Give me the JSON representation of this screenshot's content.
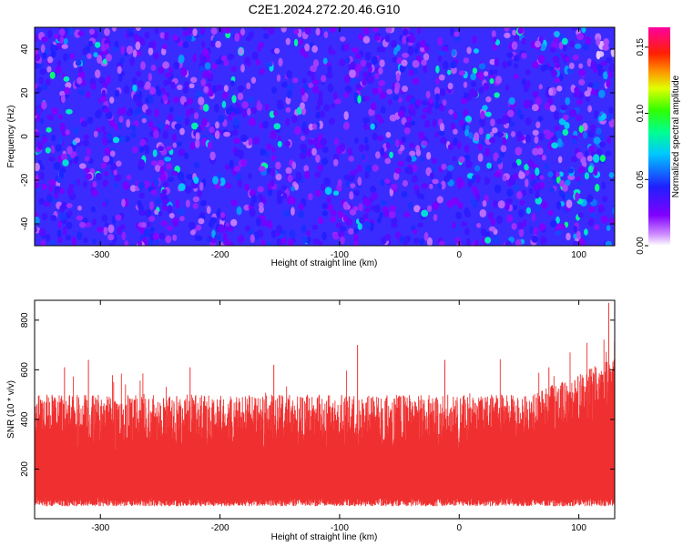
{
  "figure_title": "C2E1.2024.272.20.46.G10",
  "chart_data": [
    {
      "type": "heatmap",
      "title": "",
      "xlabel": "Height of straight line (km)",
      "ylabel": "Frequency (Hz)",
      "xlim": [
        -355,
        130
      ],
      "ylim": [
        -50,
        50
      ],
      "x_ticks": [
        -300,
        -200,
        -100,
        0,
        100
      ],
      "y_ticks": [
        -40,
        -20,
        0,
        20,
        40
      ],
      "colorbar": {
        "label": "Normalized spectral amplitude",
        "range": [
          0.0,
          0.165
        ],
        "ticks": [
          "0.00",
          "0.05",
          "0.10",
          "0.15"
        ],
        "tick_values": [
          0.0,
          0.05,
          0.1,
          0.15
        ],
        "colormap": "rainbow (white → violet → blue → cyan → green → yellow → orange → red → magenta)"
      },
      "description_values": {
        "dominant_level": 0.03,
        "typical_range": [
          0.01,
          0.07
        ],
        "hot_spots": [
          {
            "x": -340,
            "y": 28,
            "value": 0.09
          },
          {
            "x": 110,
            "y": -15,
            "value": 0.08
          },
          {
            "x": 120,
            "y": -10,
            "value": 0.09
          },
          {
            "x": -220,
            "y": -20,
            "value": 0.07
          },
          {
            "x": 90,
            "y": 5,
            "value": 0.07
          }
        ]
      },
      "grid": false
    },
    {
      "type": "line",
      "title": "",
      "xlabel": "Height of straight line (km)",
      "ylabel": "SNR (10 * v/v)",
      "xlim": [
        -355,
        130
      ],
      "ylim": [
        0,
        880
      ],
      "x_ticks": [
        -300,
        -200,
        -100,
        0,
        100
      ],
      "y_ticks": [
        200,
        400,
        600,
        800
      ],
      "series": [
        {
          "color": "#f03030",
          "baseline_range": [
            60,
            480
          ],
          "typical_center": 180,
          "peaks": [
            {
              "x": -355,
              "y": 480
            },
            {
              "x": -330,
              "y": 610
            },
            {
              "x": -310,
              "y": 640
            },
            {
              "x": -225,
              "y": 610
            },
            {
              "x": -155,
              "y": 620
            },
            {
              "x": -85,
              "y": 700
            },
            {
              "x": -12,
              "y": 640
            },
            {
              "x": 75,
              "y": 610
            },
            {
              "x": 125,
              "y": 870
            }
          ]
        }
      ],
      "grid": false
    }
  ]
}
